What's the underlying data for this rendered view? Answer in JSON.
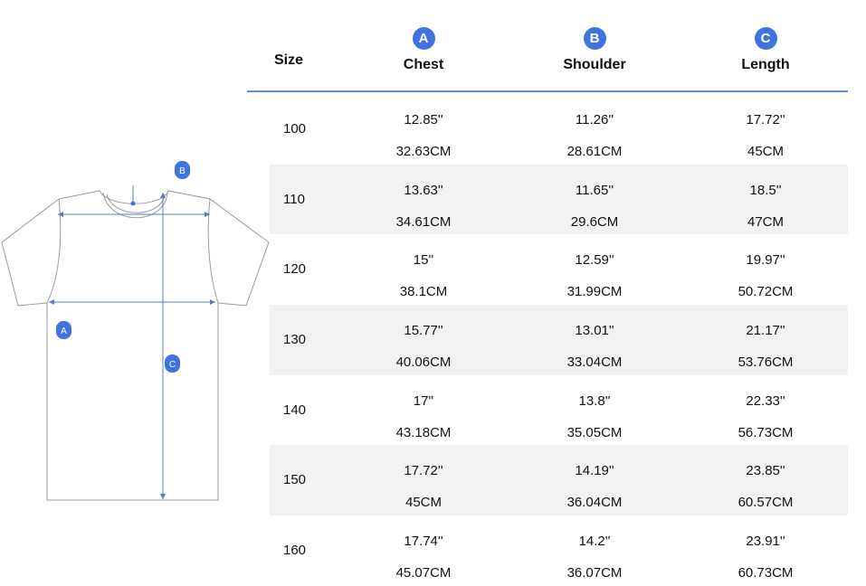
{
  "diagram": {
    "badges": [
      "A",
      "B",
      "C"
    ],
    "colors": {
      "badge": "#3f74e0",
      "outline": "#9a9a9a",
      "arrow": "#5a78c7"
    }
  },
  "table": {
    "header": {
      "size_label": "Size",
      "columns": [
        {
          "badge": "A",
          "label": "Chest"
        },
        {
          "badge": "B",
          "label": "Shoulder"
        },
        {
          "badge": "C",
          "label": "Length"
        }
      ]
    },
    "rows": [
      {
        "size": "100",
        "chest_in": "12.85''",
        "chest_cm": "32.63CM",
        "shoulder_in": "11.26''",
        "shoulder_cm": "28.61CM",
        "length_in": "17.72''",
        "length_cm": "45CM"
      },
      {
        "size": "110",
        "chest_in": "13.63''",
        "chest_cm": "34.61CM",
        "shoulder_in": "11.65''",
        "shoulder_cm": "29.6CM",
        "length_in": "18.5''",
        "length_cm": "47CM"
      },
      {
        "size": "120",
        "chest_in": "15''",
        "chest_cm": "38.1CM",
        "shoulder_in": "12.59''",
        "shoulder_cm": "31.99CM",
        "length_in": "19.97''",
        "length_cm": "50.72CM"
      },
      {
        "size": "130",
        "chest_in": "15.77''",
        "chest_cm": "40.06CM",
        "shoulder_in": "13.01''",
        "shoulder_cm": "33.04CM",
        "length_in": "21.17''",
        "length_cm": "53.76CM"
      },
      {
        "size": "140",
        "chest_in": "17''",
        "chest_cm": "43.18CM",
        "shoulder_in": "13.8''",
        "shoulder_cm": "35.05CM",
        "length_in": "22.33''",
        "length_cm": "56.73CM"
      },
      {
        "size": "150",
        "chest_in": "17.72''",
        "chest_cm": "45CM",
        "shoulder_in": "14.19''",
        "shoulder_cm": "36.04CM",
        "length_in": "23.85''",
        "length_cm": "60.57CM"
      },
      {
        "size": "160",
        "chest_in": "17.74''",
        "chest_cm": "45.07CM",
        "shoulder_in": "14.2''",
        "shoulder_cm": "36.07CM",
        "length_in": "23.91''",
        "length_cm": "60.73CM"
      }
    ]
  }
}
